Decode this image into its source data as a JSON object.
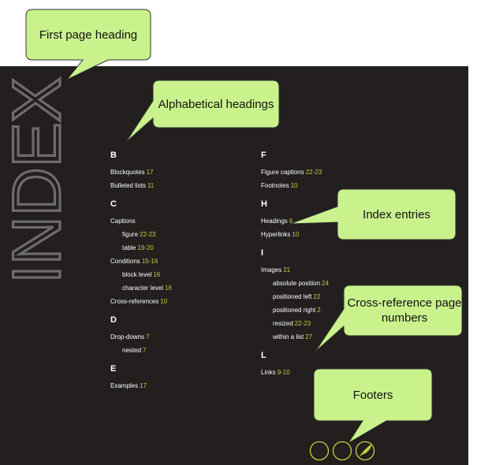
{
  "callouts": {
    "first_page_heading": "First page heading",
    "alphabetical_headings": "Alphabetical headings",
    "index_entries": "Index entries",
    "cross_reference_page_numbers": "Cross-reference page numbers",
    "footers": "Footers"
  },
  "page": {
    "title": "INDEX",
    "colors": {
      "background": "#221f1e",
      "page_numbers": "#cccc44",
      "title": "#6e6c6a",
      "footer_circles": "#c8cc3a",
      "callout_fill": "#c9f28c"
    }
  },
  "columns": {
    "left": [
      {
        "letter": "B",
        "entries": [
          {
            "text": "Blockquotes",
            "pages": "17",
            "sub": false
          },
          {
            "text": "Bulleted lists",
            "pages": "11",
            "sub": false
          }
        ]
      },
      {
        "letter": "C",
        "entries": [
          {
            "text": "Captions",
            "pages": "",
            "sub": false
          },
          {
            "text": "figure",
            "pages": "22-23",
            "sub": true
          },
          {
            "text": "table",
            "pages": "19-20",
            "sub": true
          },
          {
            "text": "Conditions",
            "pages": "15-16",
            "sub": false
          },
          {
            "text": "block level",
            "pages": "16",
            "sub": true
          },
          {
            "text": "character level",
            "pages": "16",
            "sub": true
          },
          {
            "text": "Cross-references",
            "pages": "10",
            "sub": false
          }
        ]
      },
      {
        "letter": "D",
        "entries": [
          {
            "text": "Drop-downs",
            "pages": "7",
            "sub": false
          },
          {
            "text": "nested",
            "pages": "7",
            "sub": true
          }
        ]
      },
      {
        "letter": "E",
        "entries": [
          {
            "text": "Examples",
            "pages": "17",
            "sub": false
          }
        ]
      }
    ],
    "right": [
      {
        "letter": "F",
        "entries": [
          {
            "text": "Figure captions",
            "pages": "22-23",
            "sub": false
          },
          {
            "text": "Footnotes",
            "pages": "10",
            "sub": false
          }
        ]
      },
      {
        "letter": "H",
        "entries": [
          {
            "text": "Headings",
            "pages": "6",
            "sub": false
          },
          {
            "text": "Hyperlinks",
            "pages": "10",
            "sub": false
          }
        ]
      },
      {
        "letter": "I",
        "entries": [
          {
            "text": "Images",
            "pages": "21",
            "sub": false
          },
          {
            "text": "absolute position",
            "pages": "24",
            "sub": true
          },
          {
            "text": "positioned left",
            "pages": "22",
            "sub": true
          },
          {
            "text": "positioned right",
            "pages": "2",
            "sub": true
          },
          {
            "text": "resized",
            "pages": "22-23",
            "sub": true
          },
          {
            "text": "within a list",
            "pages": "27",
            "sub": true
          }
        ]
      },
      {
        "letter": "L",
        "entries": [
          {
            "text": "Links",
            "pages": "9-10",
            "sub": false
          }
        ]
      }
    ]
  }
}
